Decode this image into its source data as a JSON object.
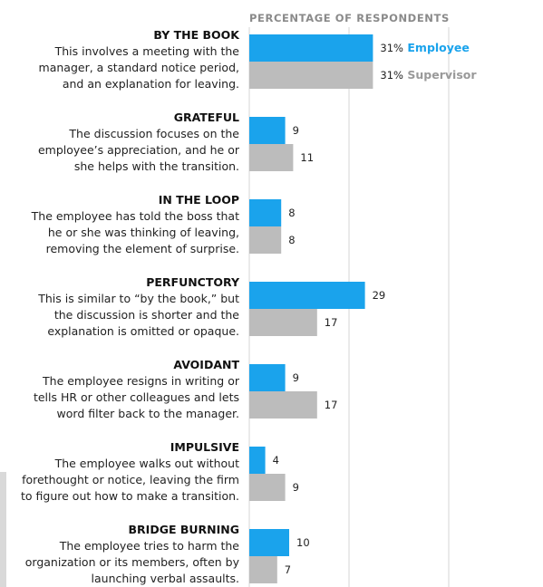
{
  "colors": {
    "employee": "#1aa3ec",
    "supervisor": "#bcbcbc",
    "grid": "#d6d6d6"
  },
  "chart_data": {
    "type": "bar",
    "orientation": "horizontal",
    "axis_title": "PERCENTAGE OF RESPONDENTS",
    "xlim": [
      0,
      33
    ],
    "grid": true,
    "legend": "inline with first category",
    "value_suffix_first": "%",
    "series": [
      {
        "name": "Employee",
        "values": [
          31,
          9,
          8,
          29,
          9,
          4,
          10
        ]
      },
      {
        "name": "Supervisor",
        "values": [
          31,
          11,
          8,
          17,
          17,
          9,
          7
        ]
      }
    ],
    "categories": [
      {
        "title": "BY THE BOOK",
        "desc": [
          "This involves a meeting with the",
          "manager, a standard notice period,",
          "and an explanation for leaving."
        ]
      },
      {
        "title": "GRATEFUL",
        "desc": [
          "The discussion focuses on the",
          "employee’s appreciation, and he or",
          "she helps with the transition."
        ]
      },
      {
        "title": "IN THE LOOP",
        "desc": [
          "The employee has told the boss that",
          "he or she was thinking of leaving,",
          "removing the element of surprise."
        ]
      },
      {
        "title": "PERFUNCTORY",
        "desc": [
          "This is similar to “by the book,” but",
          "the discussion is shorter and the",
          "explanation is omitted or opaque."
        ]
      },
      {
        "title": "AVOIDANT",
        "desc": [
          "The employee resigns in writing or",
          "tells HR or other colleagues and lets",
          "word filter back to the manager."
        ]
      },
      {
        "title": "IMPULSIVE",
        "desc": [
          "The employee walks out without",
          "forethought or notice, leaving the firm",
          "to figure out how to make a transition."
        ]
      },
      {
        "title": "BRIDGE BURNING",
        "desc": [
          "The employee tries to harm the",
          "organization or its members, often by",
          "launching verbal assaults."
        ]
      }
    ]
  }
}
